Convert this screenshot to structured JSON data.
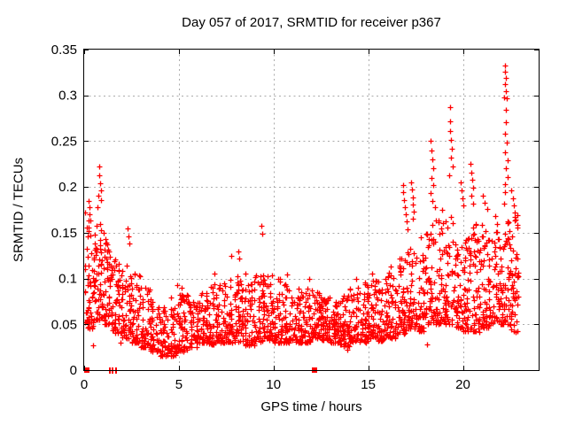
{
  "chart_data": {
    "type": "scatter",
    "title": "Day 057 of 2017, SRMTID for receiver p367",
    "xlabel": "GPS time / hours",
    "ylabel": "SRMTID / TECUs",
    "xlim": [
      0,
      24
    ],
    "ylim": [
      0,
      0.35
    ],
    "xticks": [
      0,
      5,
      10,
      15,
      20
    ],
    "xtick_labels": [
      "0",
      "5",
      "10",
      "15",
      "20"
    ],
    "yticks": [
      0,
      0.05,
      0.1,
      0.15,
      0.2,
      0.25,
      0.3,
      0.35
    ],
    "ytick_labels": [
      "0",
      "0.05",
      "0.1",
      "0.15",
      "0.2",
      "0.25",
      "0.3",
      "0.35"
    ],
    "grid": {
      "show": true,
      "color": "#ababab",
      "style": "dotted",
      "x_at": [
        5,
        10,
        15,
        20
      ],
      "y_at": [
        0.05,
        0.1,
        0.15,
        0.2,
        0.25,
        0.3
      ]
    },
    "marker": {
      "shape": "plus",
      "color": "#ff0000",
      "size": 7
    },
    "legend": null,
    "seed": 20170057,
    "skew": 1.7,
    "cloud_bins_x0_x1_count_ylo_yhi": [
      [
        0.02,
        0.5,
        55,
        0.045,
        0.175
      ],
      [
        0.5,
        1.0,
        60,
        0.055,
        0.165
      ],
      [
        1.0,
        1.5,
        55,
        0.05,
        0.14
      ],
      [
        1.5,
        2.0,
        50,
        0.04,
        0.125
      ],
      [
        2.0,
        2.5,
        50,
        0.035,
        0.115
      ],
      [
        2.5,
        3.0,
        50,
        0.03,
        0.105
      ],
      [
        3.0,
        3.5,
        46,
        0.025,
        0.09
      ],
      [
        3.5,
        4.0,
        46,
        0.02,
        0.08
      ],
      [
        4.0,
        4.5,
        46,
        0.015,
        0.07
      ],
      [
        4.5,
        5.0,
        48,
        0.015,
        0.08
      ],
      [
        5.0,
        5.5,
        48,
        0.02,
        0.085
      ],
      [
        5.5,
        6.0,
        46,
        0.025,
        0.082
      ],
      [
        6.0,
        6.5,
        46,
        0.03,
        0.09
      ],
      [
        6.5,
        7.0,
        46,
        0.028,
        0.095
      ],
      [
        7.0,
        7.5,
        46,
        0.03,
        0.097
      ],
      [
        7.5,
        8.0,
        48,
        0.03,
        0.105
      ],
      [
        8.0,
        8.5,
        48,
        0.03,
        0.105
      ],
      [
        8.5,
        9.0,
        46,
        0.027,
        0.095
      ],
      [
        9.0,
        9.5,
        48,
        0.03,
        0.105
      ],
      [
        9.5,
        10.0,
        48,
        0.033,
        0.108
      ],
      [
        10.0,
        10.5,
        46,
        0.03,
        0.1
      ],
      [
        10.5,
        11.0,
        46,
        0.03,
        0.096
      ],
      [
        11.0,
        11.5,
        45,
        0.03,
        0.092
      ],
      [
        11.5,
        12.0,
        45,
        0.03,
        0.09
      ],
      [
        12.0,
        12.5,
        50,
        0.035,
        0.088
      ],
      [
        12.5,
        13.0,
        54,
        0.033,
        0.082
      ],
      [
        13.0,
        13.5,
        54,
        0.03,
        0.078
      ],
      [
        13.5,
        14.0,
        50,
        0.026,
        0.082
      ],
      [
        14.0,
        14.5,
        48,
        0.03,
        0.09
      ],
      [
        14.5,
        15.0,
        48,
        0.03,
        0.096
      ],
      [
        15.0,
        15.5,
        48,
        0.034,
        0.1
      ],
      [
        15.5,
        16.0,
        48,
        0.032,
        0.102
      ],
      [
        16.0,
        16.5,
        48,
        0.035,
        0.108
      ],
      [
        16.5,
        17.0,
        48,
        0.04,
        0.125
      ],
      [
        17.0,
        17.5,
        48,
        0.045,
        0.142
      ],
      [
        17.5,
        18.0,
        45,
        0.042,
        0.13
      ],
      [
        18.0,
        18.5,
        48,
        0.05,
        0.17
      ],
      [
        18.5,
        19.0,
        48,
        0.05,
        0.18
      ],
      [
        19.0,
        19.5,
        48,
        0.05,
        0.172
      ],
      [
        19.5,
        20.0,
        48,
        0.046,
        0.152
      ],
      [
        20.0,
        20.5,
        48,
        0.042,
        0.15
      ],
      [
        20.5,
        21.0,
        50,
        0.042,
        0.16
      ],
      [
        21.0,
        21.5,
        52,
        0.046,
        0.17
      ],
      [
        21.5,
        22.0,
        52,
        0.05,
        0.152
      ],
      [
        22.0,
        22.5,
        52,
        0.05,
        0.198
      ],
      [
        22.5,
        23.0,
        48,
        0.042,
        0.17
      ]
    ],
    "outlier_points": [
      [
        0.22,
        0.185
      ],
      [
        0.26,
        0.178
      ],
      [
        0.3,
        0.17
      ],
      [
        0.34,
        0.163
      ],
      [
        0.7,
        0.178
      ],
      [
        0.74,
        0.19
      ],
      [
        0.78,
        0.222
      ],
      [
        0.8,
        0.213
      ],
      [
        0.84,
        0.204
      ],
      [
        0.87,
        0.196
      ],
      [
        0.9,
        0.186
      ],
      [
        1.05,
        0.15
      ],
      [
        1.1,
        0.143
      ],
      [
        2.3,
        0.155
      ],
      [
        2.34,
        0.146
      ],
      [
        2.38,
        0.138
      ],
      [
        4.9,
        0.093
      ],
      [
        5.15,
        0.09
      ],
      [
        6.9,
        0.105
      ],
      [
        7.75,
        0.125
      ],
      [
        8.15,
        0.13
      ],
      [
        8.2,
        0.122
      ],
      [
        9.38,
        0.158
      ],
      [
        9.42,
        0.149
      ],
      [
        10.7,
        0.104
      ],
      [
        11.9,
        0.1
      ],
      [
        14.35,
        0.1
      ],
      [
        15.2,
        0.105
      ],
      [
        16.2,
        0.113
      ],
      [
        16.82,
        0.202
      ],
      [
        16.86,
        0.194
      ],
      [
        16.9,
        0.186
      ],
      [
        16.94,
        0.178
      ],
      [
        16.98,
        0.17
      ],
      [
        17.02,
        0.162
      ],
      [
        17.06,
        0.154
      ],
      [
        17.26,
        0.205
      ],
      [
        17.3,
        0.197
      ],
      [
        17.34,
        0.189
      ],
      [
        17.38,
        0.181
      ],
      [
        17.42,
        0.173
      ],
      [
        17.34,
        0.165
      ],
      [
        17.8,
        0.145
      ],
      [
        18.3,
        0.25
      ],
      [
        18.34,
        0.24
      ],
      [
        18.38,
        0.23
      ],
      [
        18.42,
        0.22
      ],
      [
        18.36,
        0.21
      ],
      [
        18.44,
        0.202
      ],
      [
        18.28,
        0.193
      ],
      [
        18.4,
        0.185
      ],
      [
        18.9,
        0.175
      ],
      [
        19.3,
        0.287
      ],
      [
        19.34,
        0.272
      ],
      [
        19.32,
        0.261
      ],
      [
        19.36,
        0.251
      ],
      [
        19.4,
        0.242
      ],
      [
        19.38,
        0.232
      ],
      [
        19.44,
        0.222
      ],
      [
        19.28,
        0.213
      ],
      [
        19.88,
        0.205
      ],
      [
        19.93,
        0.196
      ],
      [
        19.98,
        0.188
      ],
      [
        20.03,
        0.18
      ],
      [
        20.4,
        0.225
      ],
      [
        20.44,
        0.216
      ],
      [
        20.48,
        0.208
      ],
      [
        20.52,
        0.199
      ],
      [
        20.46,
        0.19
      ],
      [
        20.56,
        0.182
      ],
      [
        21.05,
        0.19
      ],
      [
        21.15,
        0.183
      ],
      [
        21.3,
        0.176
      ],
      [
        21.7,
        0.168
      ],
      [
        21.8,
        0.16
      ],
      [
        22.2,
        0.333
      ],
      [
        22.23,
        0.326
      ],
      [
        22.26,
        0.319
      ],
      [
        22.22,
        0.312
      ],
      [
        22.28,
        0.305
      ],
      [
        22.18,
        0.298
      ],
      [
        22.31,
        0.297
      ],
      [
        22.25,
        0.284
      ],
      [
        22.29,
        0.271
      ],
      [
        22.24,
        0.258
      ],
      [
        22.32,
        0.248
      ],
      [
        22.2,
        0.238
      ],
      [
        22.36,
        0.229
      ],
      [
        22.28,
        0.22
      ],
      [
        22.34,
        0.211
      ],
      [
        22.24,
        0.203
      ],
      [
        22.55,
        0.196
      ],
      [
        22.62,
        0.188
      ],
      [
        22.68,
        0.18
      ],
      [
        22.74,
        0.172
      ],
      [
        22.8,
        0.164
      ],
      [
        22.86,
        0.156
      ],
      [
        0.47,
        0.027
      ],
      [
        1.92,
        0.03
      ],
      [
        13.9,
        0.022
      ],
      [
        18.1,
        0.028
      ]
    ],
    "baseline_squares": [
      {
        "x": 0.16,
        "w": 6,
        "h": 6
      },
      {
        "x": 1.35,
        "w": 2,
        "h": 7
      },
      {
        "x": 1.52,
        "w": 2,
        "h": 7
      },
      {
        "x": 1.7,
        "w": 2,
        "h": 7
      },
      {
        "x": 12.16,
        "w": 6,
        "h": 6
      }
    ]
  }
}
